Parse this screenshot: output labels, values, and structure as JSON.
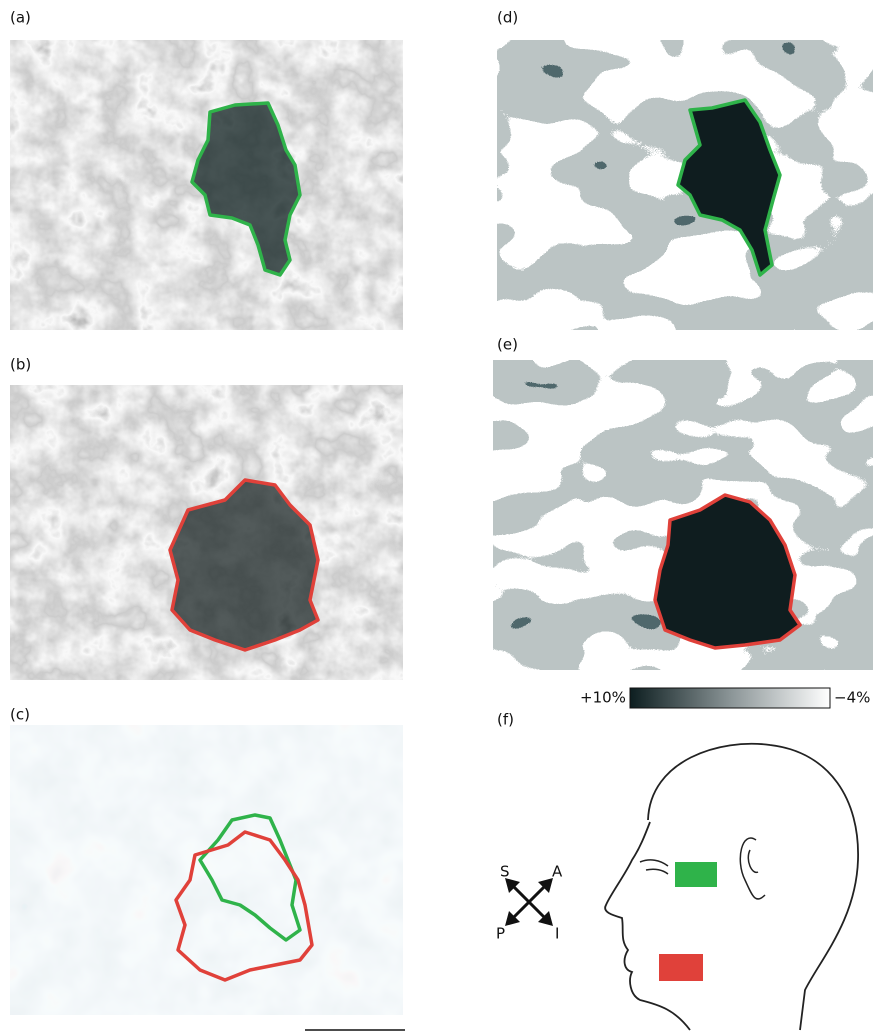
{
  "panels": [
    {
      "label": "(a)"
    },
    {
      "label": "(b)"
    },
    {
      "label": "(c)"
    },
    {
      "label": "(d)"
    },
    {
      "label": "(e)"
    },
    {
      "label": "(f)"
    }
  ],
  "colorbar": {
    "left_label": "+10%",
    "right_label": "−4%"
  },
  "compass": {
    "labels": [
      "S",
      "A",
      "P",
      "I"
    ]
  }
}
